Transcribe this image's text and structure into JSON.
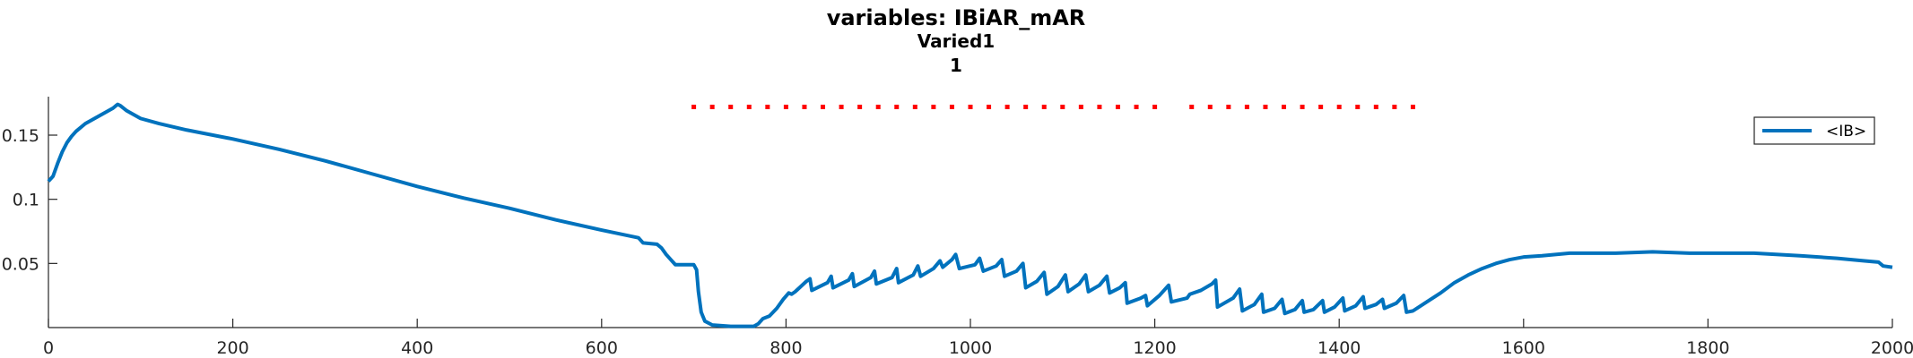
{
  "chart_data": {
    "type": "line",
    "title": "variables: IBiAR_mAR",
    "subtitle": "Varied1",
    "subtitle2": "1",
    "xlabel": "",
    "ylabel": "",
    "xlim": [
      0,
      2000
    ],
    "ylim": [
      0,
      0.18
    ],
    "xticks": [
      0,
      200,
      400,
      600,
      800,
      1000,
      1200,
      1400,
      1600,
      1800,
      2000
    ],
    "xtick_labels": [
      "0",
      "200",
      "400",
      "600",
      "800",
      "1000",
      "1200",
      "1400",
      "1600",
      "1800",
      "2000"
    ],
    "yticks": [
      0.05,
      0.1,
      0.15
    ],
    "ytick_labels": [
      "0.05",
      "0.1",
      "0.15"
    ],
    "grid": false,
    "legend": {
      "position": "top-right",
      "entries": [
        "<IB>"
      ]
    },
    "colors": {
      "line": "#0072BD",
      "markers": "#FF0000",
      "axis": "#262626"
    },
    "series": [
      {
        "name": "<IB>",
        "points": [
          [
            0,
            0.114
          ],
          [
            5,
            0.118
          ],
          [
            10,
            0.128
          ],
          [
            15,
            0.137
          ],
          [
            20,
            0.144
          ],
          [
            25,
            0.149
          ],
          [
            30,
            0.153
          ],
          [
            40,
            0.159
          ],
          [
            50,
            0.163
          ],
          [
            60,
            0.167
          ],
          [
            70,
            0.171
          ],
          [
            75,
            0.174
          ],
          [
            78,
            0.173
          ],
          [
            85,
            0.169
          ],
          [
            100,
            0.163
          ],
          [
            120,
            0.159
          ],
          [
            150,
            0.154
          ],
          [
            200,
            0.147
          ],
          [
            250,
            0.139
          ],
          [
            300,
            0.13
          ],
          [
            350,
            0.12
          ],
          [
            400,
            0.11
          ],
          [
            450,
            0.101
          ],
          [
            500,
            0.093
          ],
          [
            550,
            0.084
          ],
          [
            600,
            0.076
          ],
          [
            640,
            0.07
          ],
          [
            645,
            0.066
          ],
          [
            660,
            0.065
          ],
          [
            665,
            0.062
          ],
          [
            670,
            0.057
          ],
          [
            675,
            0.053
          ],
          [
            680,
            0.049
          ],
          [
            700,
            0.049
          ],
          [
            703,
            0.045
          ],
          [
            705,
            0.028
          ],
          [
            708,
            0.012
          ],
          [
            712,
            0.005
          ],
          [
            720,
            0.002
          ],
          [
            740,
            0.001
          ],
          [
            765,
            0.001
          ],
          [
            770,
            0.003
          ],
          [
            775,
            0.007
          ],
          [
            782,
            0.009
          ],
          [
            790,
            0.015
          ],
          [
            797,
            0.022
          ],
          [
            803,
            0.027
          ],
          [
            806,
            0.026
          ],
          [
            810,
            0.028
          ],
          [
            822,
            0.036
          ],
          [
            826,
            0.038
          ],
          [
            828,
            0.029
          ],
          [
            845,
            0.035
          ],
          [
            849,
            0.04
          ],
          [
            851,
            0.031
          ],
          [
            868,
            0.037
          ],
          [
            872,
            0.042
          ],
          [
            874,
            0.032
          ],
          [
            892,
            0.039
          ],
          [
            896,
            0.044
          ],
          [
            898,
            0.034
          ],
          [
            915,
            0.039
          ],
          [
            920,
            0.046
          ],
          [
            922,
            0.035
          ],
          [
            938,
            0.041
          ],
          [
            943,
            0.048
          ],
          [
            946,
            0.04
          ],
          [
            960,
            0.046
          ],
          [
            967,
            0.052
          ],
          [
            970,
            0.047
          ],
          [
            980,
            0.053
          ],
          [
            984,
            0.057
          ],
          [
            988,
            0.046
          ],
          [
            1005,
            0.049
          ],
          [
            1010,
            0.054
          ],
          [
            1014,
            0.044
          ],
          [
            1028,
            0.048
          ],
          [
            1034,
            0.053
          ],
          [
            1037,
            0.04
          ],
          [
            1050,
            0.044
          ],
          [
            1057,
            0.05
          ],
          [
            1060,
            0.031
          ],
          [
            1072,
            0.036
          ],
          [
            1080,
            0.043
          ],
          [
            1083,
            0.026
          ],
          [
            1095,
            0.032
          ],
          [
            1103,
            0.041
          ],
          [
            1106,
            0.028
          ],
          [
            1118,
            0.034
          ],
          [
            1125,
            0.041
          ],
          [
            1128,
            0.028
          ],
          [
            1140,
            0.033
          ],
          [
            1148,
            0.04
          ],
          [
            1151,
            0.027
          ],
          [
            1162,
            0.031
          ],
          [
            1168,
            0.035
          ],
          [
            1170,
            0.019
          ],
          [
            1185,
            0.023
          ],
          [
            1190,
            0.025
          ],
          [
            1192,
            0.017
          ],
          [
            1205,
            0.025
          ],
          [
            1215,
            0.033
          ],
          [
            1218,
            0.02
          ],
          [
            1235,
            0.023
          ],
          [
            1238,
            0.026
          ],
          [
            1250,
            0.029
          ],
          [
            1262,
            0.034
          ],
          [
            1266,
            0.037
          ],
          [
            1268,
            0.016
          ],
          [
            1285,
            0.023
          ],
          [
            1292,
            0.03
          ],
          [
            1295,
            0.013
          ],
          [
            1308,
            0.018
          ],
          [
            1316,
            0.026
          ],
          [
            1318,
            0.012
          ],
          [
            1330,
            0.015
          ],
          [
            1338,
            0.022
          ],
          [
            1341,
            0.011
          ],
          [
            1352,
            0.014
          ],
          [
            1360,
            0.021
          ],
          [
            1362,
            0.012
          ],
          [
            1372,
            0.014
          ],
          [
            1382,
            0.021
          ],
          [
            1384,
            0.012
          ],
          [
            1395,
            0.016
          ],
          [
            1404,
            0.023
          ],
          [
            1406,
            0.013
          ],
          [
            1418,
            0.017
          ],
          [
            1426,
            0.024
          ],
          [
            1428,
            0.015
          ],
          [
            1440,
            0.018
          ],
          [
            1447,
            0.022
          ],
          [
            1449,
            0.015
          ],
          [
            1462,
            0.019
          ],
          [
            1470,
            0.025
          ],
          [
            1473,
            0.012
          ],
          [
            1480,
            0.013
          ],
          [
            1495,
            0.02
          ],
          [
            1510,
            0.027
          ],
          [
            1525,
            0.035
          ],
          [
            1540,
            0.041
          ],
          [
            1555,
            0.046
          ],
          [
            1570,
            0.05
          ],
          [
            1585,
            0.053
          ],
          [
            1600,
            0.055
          ],
          [
            1620,
            0.056
          ],
          [
            1650,
            0.058
          ],
          [
            1700,
            0.058
          ],
          [
            1740,
            0.059
          ],
          [
            1780,
            0.058
          ],
          [
            1820,
            0.058
          ],
          [
            1850,
            0.058
          ],
          [
            1900,
            0.056
          ],
          [
            1940,
            0.054
          ],
          [
            1970,
            0.052
          ],
          [
            1985,
            0.051
          ],
          [
            1990,
            0.048
          ],
          [
            2000,
            0.047
          ]
        ]
      },
      {
        "name": "",
        "marker_only": true,
        "y": 0.172,
        "x": [
          700,
          720,
          740,
          760,
          780,
          800,
          820,
          840,
          860,
          880,
          900,
          920,
          940,
          960,
          980,
          1000,
          1020,
          1040,
          1060,
          1080,
          1100,
          1120,
          1140,
          1160,
          1180,
          1200,
          1240,
          1260,
          1280,
          1300,
          1320,
          1340,
          1360,
          1380,
          1400,
          1420,
          1440,
          1460,
          1480
        ]
      }
    ]
  }
}
